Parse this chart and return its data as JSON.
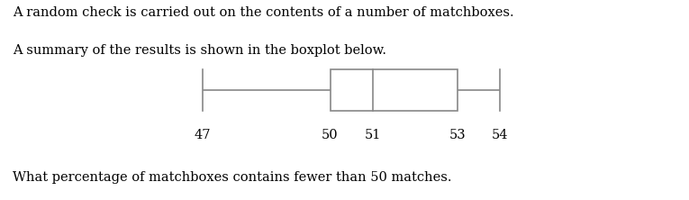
{
  "text_line1": "A random check is carried out on the contents of a number of matchboxes.",
  "text_line2": "A summary of the results is shown in the boxplot below.",
  "text_question": "What percentage of matchboxes contains fewer than 50 matches.",
  "whisker_low": 47,
  "q1": 50,
  "median": 51,
  "q3": 53,
  "whisker_high": 54,
  "tick_labels": [
    47,
    50,
    51,
    53,
    54
  ],
  "box_color": "#ffffff",
  "box_edge_color": "#888888",
  "line_color": "#888888",
  "text_color": "#000000",
  "background_color": "#ffffff",
  "text_fontsize": 10.5,
  "question_fontsize": 10.5,
  "xlim_low": 44.5,
  "xlim_high": 56.5
}
